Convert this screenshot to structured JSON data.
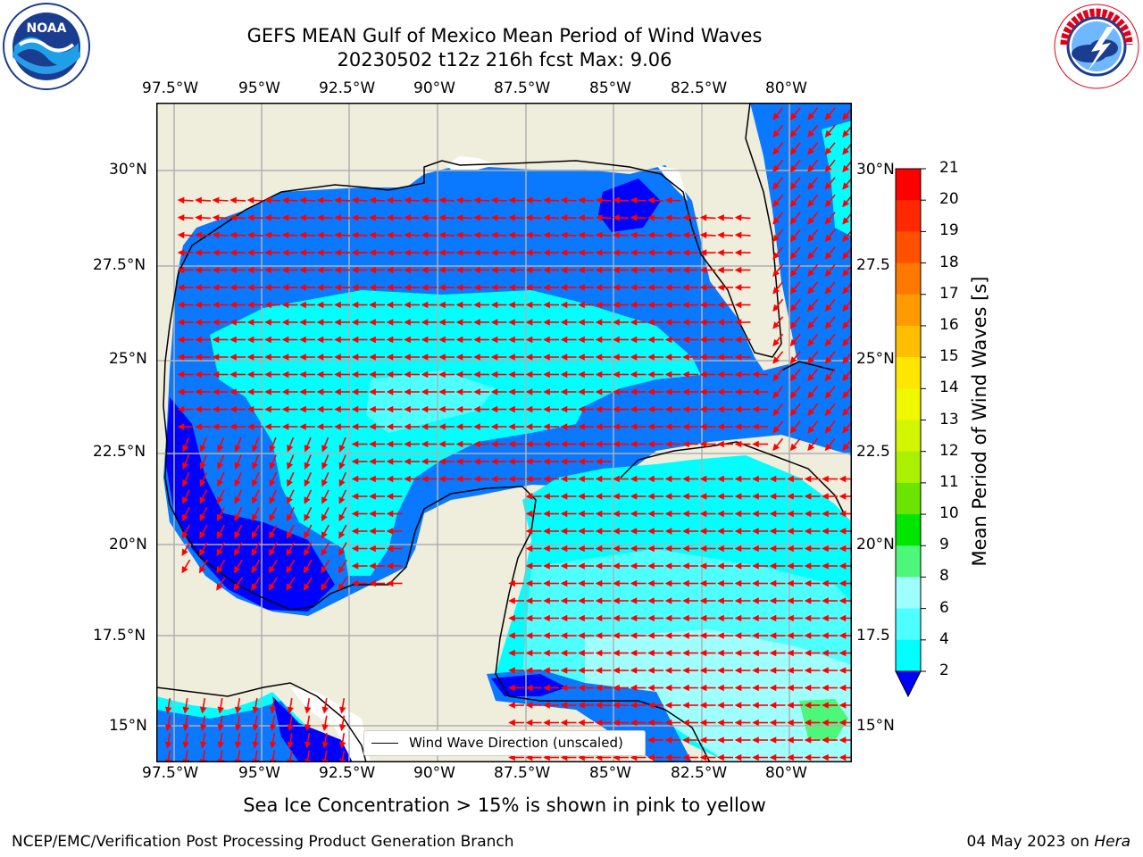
{
  "title": {
    "line1": "GEFS MEAN Gulf of Mexico Mean Period of Wind Waves",
    "line2": "20230502 t12z 216h fcst   Max: 9.06"
  },
  "logos": {
    "left_text": "NOAA",
    "left_ring_text": "NATIONAL OCEANIC AND ATMOSPHERIC ADMINISTRATION · U.S. DEPARTMENT OF COMMERCE",
    "right_ring_text": "NATIONAL WEATHER SERVICE"
  },
  "map": {
    "lon_labels": [
      "97.5°W",
      "95°W",
      "92.5°W",
      "90°W",
      "87.5°W",
      "85°W",
      "82.5°W",
      "80°W"
    ],
    "lat_labels": [
      "30°N",
      "27.5°N",
      "25°N",
      "22.5°N",
      "20°N",
      "17.5°N",
      "15°N"
    ],
    "right_lat_labels": [
      "30°N",
      "27.5",
      "25°N",
      "22.5",
      "20°N",
      "17.5",
      "15°N"
    ],
    "legend_label": "Wind Wave Direction (unscaled)",
    "colors": {
      "land": "#efeddc",
      "blue_dark": "#0000ff",
      "blue": "#0a78ff",
      "cyan": "#00ffff",
      "cyan_light": "#4dffff",
      "cyan_pale": "#9ffffe",
      "green": "#4cf77a",
      "arrow": "#ff0000"
    }
  },
  "colorbar": {
    "label": "Mean Period of Wind Waves [s]",
    "ticks": [
      "21",
      "20",
      "19",
      "18",
      "17",
      "16",
      "15",
      "14",
      "13",
      "12",
      "11",
      "10",
      "9",
      "8",
      "6",
      "4",
      "2"
    ],
    "colors": [
      "#ff0000",
      "#ff2800",
      "#ff5000",
      "#ff7800",
      "#ff9b00",
      "#ffbe00",
      "#ffe600",
      "#f0f800",
      "#d2f500",
      "#aaf000",
      "#6ae400",
      "#00e600",
      "#4cf77a",
      "#9ffffe",
      "#4dffff",
      "#00ffff",
      "#0a78ff",
      "#0000ff"
    ]
  },
  "subtitle": "Sea Ice Concentration > 15% is shown in pink to yellow",
  "footer": {
    "left": "NCEP/EMC/Verification Post Processing Product Generation Branch",
    "right_prefix": "04 May 2023 on ",
    "right_host": "Hera"
  }
}
